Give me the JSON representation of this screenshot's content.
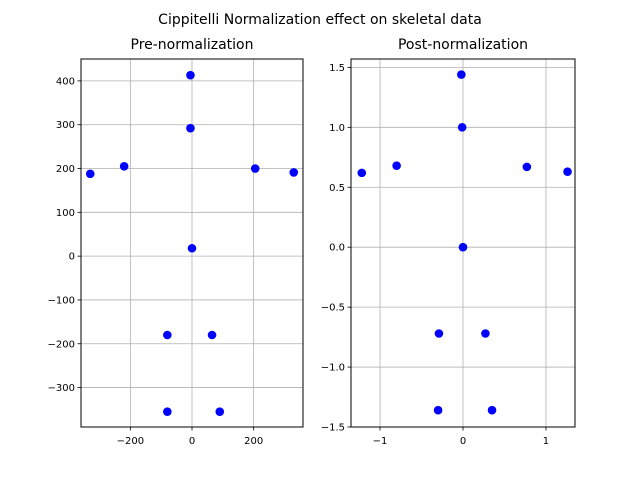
{
  "figure": {
    "suptitle": "Cippitelli Normalization effect on skeletal data"
  },
  "colors": {
    "point": "#0000ff",
    "grid": "#b0b0b0",
    "axis": "#000000",
    "background": "#ffffff"
  },
  "chart_data": [
    {
      "type": "scatter",
      "title": "Pre-normalization",
      "xlabel": "",
      "ylabel": "",
      "xlim": [
        -360,
        360
      ],
      "ylim": [
        -390,
        450
      ],
      "xticks": [
        -200,
        0,
        200
      ],
      "xtick_labels": [
        "−200",
        "0",
        "200"
      ],
      "yticks": [
        -300,
        -200,
        -100,
        0,
        100,
        200,
        300,
        400
      ],
      "ytick_labels": [
        "−300",
        "−200",
        "−100",
        "0",
        "100",
        "200",
        "300",
        "400"
      ],
      "grid": true,
      "points": [
        {
          "x": -5,
          "y": 413
        },
        {
          "x": -5,
          "y": 292
        },
        {
          "x": -220,
          "y": 205
        },
        {
          "x": -330,
          "y": 188
        },
        {
          "x": 205,
          "y": 200
        },
        {
          "x": 330,
          "y": 191
        },
        {
          "x": 0,
          "y": 18
        },
        {
          "x": -80,
          "y": -180
        },
        {
          "x": 65,
          "y": -180
        },
        {
          "x": -80,
          "y": -355
        },
        {
          "x": 90,
          "y": -355
        }
      ]
    },
    {
      "type": "scatter",
      "title": "Post-normalization",
      "xlabel": "",
      "ylabel": "",
      "xlim": [
        -1.35,
        1.35
      ],
      "ylim": [
        -1.5,
        1.57
      ],
      "xticks": [
        -1,
        0,
        1
      ],
      "xtick_labels": [
        "−1",
        "0",
        "1"
      ],
      "yticks": [
        -1.5,
        -1.0,
        -0.5,
        0.0,
        0.5,
        1.0,
        1.5
      ],
      "ytick_labels": [
        "−1.5",
        "−1.0",
        "−0.5",
        "0.0",
        "0.5",
        "1.0",
        "1.5"
      ],
      "grid": true,
      "points": [
        {
          "x": -0.02,
          "y": 1.44
        },
        {
          "x": -0.01,
          "y": 1.0
        },
        {
          "x": -0.8,
          "y": 0.68
        },
        {
          "x": -1.22,
          "y": 0.62
        },
        {
          "x": 0.77,
          "y": 0.67
        },
        {
          "x": 1.26,
          "y": 0.63
        },
        {
          "x": 0.0,
          "y": 0.0
        },
        {
          "x": -0.29,
          "y": -0.72
        },
        {
          "x": 0.27,
          "y": -0.72
        },
        {
          "x": -0.3,
          "y": -1.36
        },
        {
          "x": 0.35,
          "y": -1.36
        }
      ]
    }
  ]
}
